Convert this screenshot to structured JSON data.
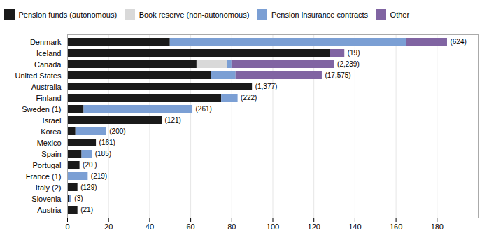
{
  "chart_data": {
    "type": "bar",
    "orientation": "horizontal",
    "stacked": true,
    "categories": [
      "Denmark",
      "Iceland",
      "Canada",
      "United States",
      "Australia",
      "Finland",
      "Sweden (1)",
      "Israel",
      "Korea",
      "Mexico",
      "Spain",
      "Portugal",
      "France (1)",
      "Italy (2)",
      "Slovenia",
      "Austria"
    ],
    "series": [
      {
        "name": "Pension funds (autonomous)",
        "color": "#1a1a1a",
        "values": [
          50,
          128,
          63,
          70,
          90,
          75,
          8,
          46,
          4,
          14,
          7,
          6,
          0,
          5,
          1,
          5
        ]
      },
      {
        "name": "Book reserve (non-autonomous)",
        "color": "#d9d9d9",
        "values": [
          0,
          0,
          15,
          0,
          0,
          0,
          0,
          0,
          0,
          0,
          0,
          0,
          0,
          0,
          0,
          0
        ]
      },
      {
        "name": "Pension insurance contracts",
        "color": "#7b9fd4",
        "values": [
          115,
          0,
          2,
          12,
          0,
          8,
          53,
          0,
          15,
          0,
          5,
          0,
          10,
          0,
          1,
          0
        ]
      },
      {
        "name": "Other",
        "color": "#8064a2",
        "values": [
          20,
          7,
          50,
          42,
          0,
          0,
          0,
          0,
          0,
          0,
          0,
          0,
          0,
          0,
          0,
          0
        ]
      }
    ],
    "annotations": [
      "(624)",
      "(19)",
      "(2,239)",
      "(17,575)",
      "(1,377)",
      "(222)",
      "(261)",
      "(121)",
      "(200)",
      "(161)",
      "(185)",
      "(20 )",
      "(219)",
      "(129)",
      "(3)",
      "(21)"
    ],
    "xlim": [
      0,
      200
    ],
    "xticks": [
      0,
      20,
      40,
      60,
      80,
      100,
      120,
      140,
      160,
      180
    ],
    "grid": true,
    "legend": "top"
  }
}
